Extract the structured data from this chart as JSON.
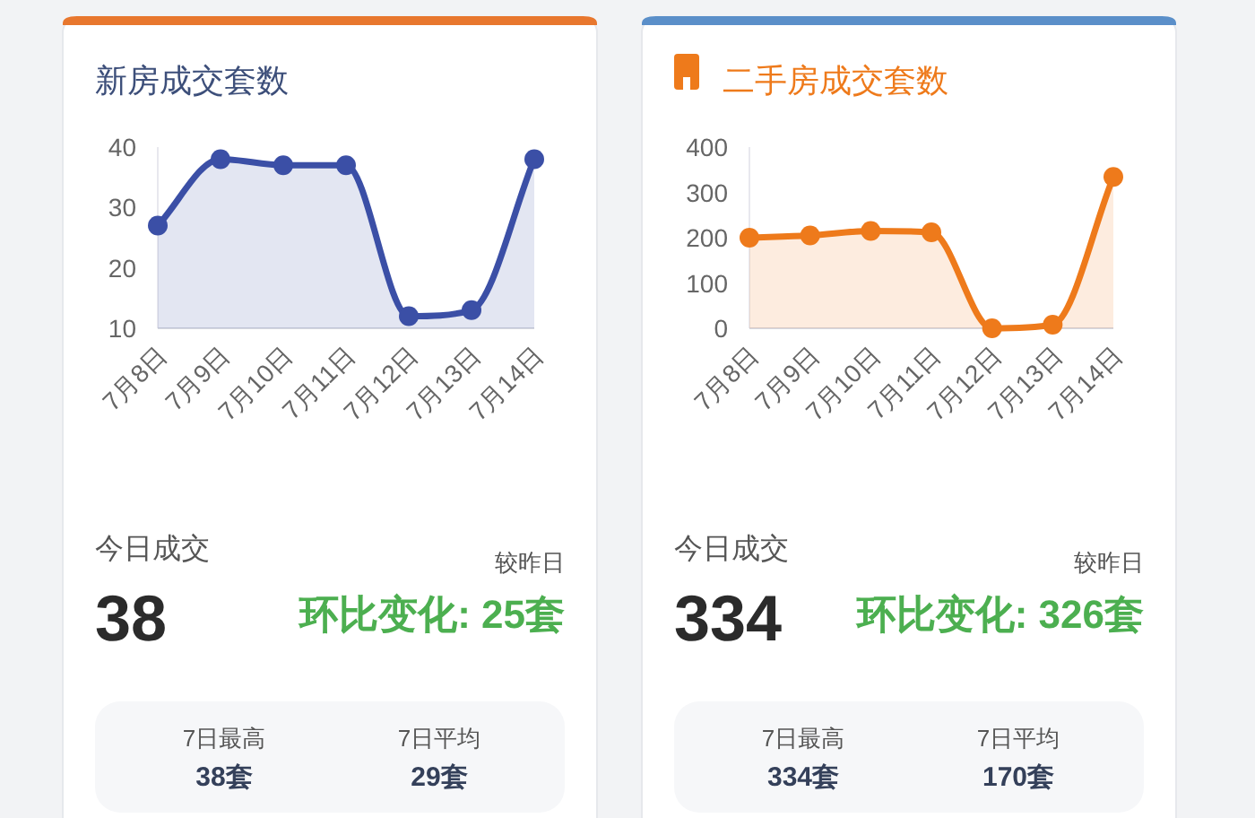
{
  "chart_data": [
    {
      "type": "area",
      "title": "新房成交套数",
      "categories": [
        "7月8日",
        "7月9日",
        "7月10日",
        "7月11日",
        "7月12日",
        "7月13日",
        "7月14日"
      ],
      "series": [
        {
          "color": "#3b4fa6",
          "values": [
            27,
            38,
            37,
            37,
            12,
            13,
            38
          ]
        }
      ],
      "ylim": [
        10,
        40
      ],
      "yticks": [
        10,
        20,
        30,
        40
      ],
      "marker": "circle",
      "grid": false
    },
    {
      "type": "other",
      "annotations": [
        "今日成交",
        "较昨日",
        "38",
        "环比变化: 25套",
        "7日最高",
        "38套",
        "7日平均",
        "29套"
      ]
    },
    {
      "type": "area",
      "title": "二手房成交套数",
      "categories": [
        "7月8日",
        "7月9日",
        "7月10日",
        "7月11日",
        "7月12日",
        "7月13日",
        "7月14日"
      ],
      "series": [
        {
          "color": "#ee7a1b",
          "values": [
            200,
            205,
            215,
            212,
            0,
            8,
            334
          ]
        }
      ],
      "ylim": [
        0,
        400
      ],
      "yticks": [
        0,
        100,
        200,
        300,
        400
      ],
      "marker": "circle",
      "grid": false
    },
    {
      "type": "other",
      "annotations": [
        "今日成交",
        "较昨日",
        "334",
        "环比变化: 326套",
        "7日最高",
        "334套",
        "7日平均",
        "170套"
      ]
    }
  ]
}
